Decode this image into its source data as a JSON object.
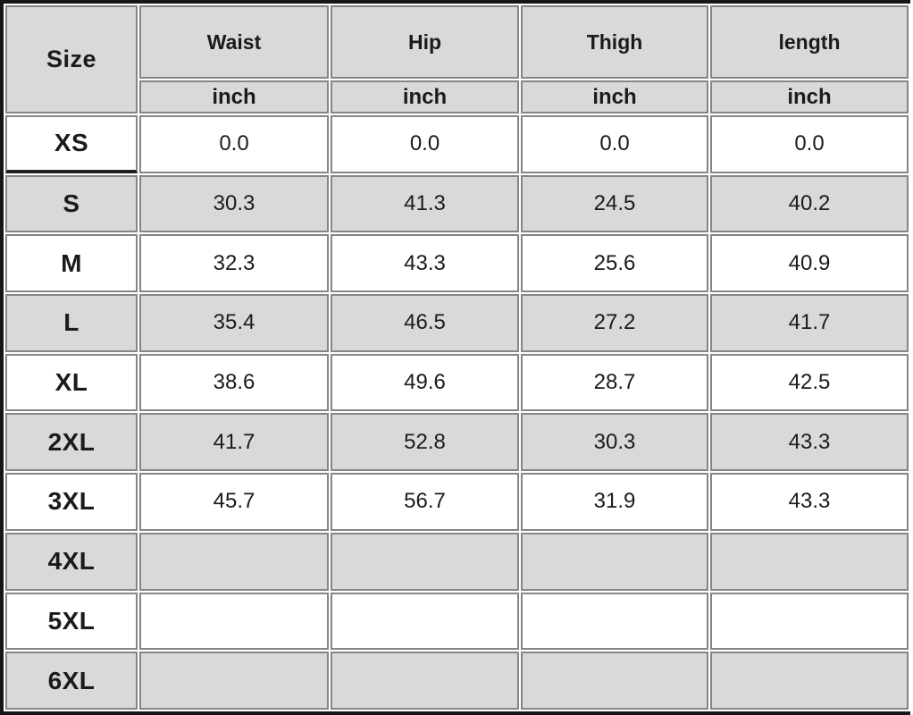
{
  "table": {
    "header": {
      "size_label": "Size",
      "columns": [
        "Waist",
        "Hip",
        "Thigh",
        "length"
      ],
      "unit": "inch"
    },
    "rows": [
      {
        "size": "XS",
        "values": [
          "0.0",
          "0.0",
          "0.0",
          "0.0"
        ]
      },
      {
        "size": "S",
        "values": [
          "30.3",
          "41.3",
          "24.5",
          "40.2"
        ]
      },
      {
        "size": "M",
        "values": [
          "32.3",
          "43.3",
          "25.6",
          "40.9"
        ]
      },
      {
        "size": "L",
        "values": [
          "35.4",
          "46.5",
          "27.2",
          "41.7"
        ]
      },
      {
        "size": "XL",
        "values": [
          "38.6",
          "49.6",
          "28.7",
          "42.5"
        ]
      },
      {
        "size": "2XL",
        "values": [
          "41.7",
          "52.8",
          "30.3",
          "43.3"
        ]
      },
      {
        "size": "3XL",
        "values": [
          "45.7",
          "56.7",
          "31.9",
          "43.3"
        ]
      },
      {
        "size": "4XL",
        "values": [
          "",
          "",
          "",
          ""
        ]
      },
      {
        "size": "5XL",
        "values": [
          "",
          "",
          "",
          ""
        ]
      },
      {
        "size": "6XL",
        "values": [
          "",
          "",
          "",
          ""
        ]
      }
    ]
  },
  "chart_data": {
    "type": "table",
    "columns": [
      "Size",
      "Waist (inch)",
      "Hip (inch)",
      "Thigh (inch)",
      "length (inch)"
    ],
    "rows": [
      [
        "XS",
        0.0,
        0.0,
        0.0,
        0.0
      ],
      [
        "S",
        30.3,
        41.3,
        24.5,
        40.2
      ],
      [
        "M",
        32.3,
        43.3,
        25.6,
        40.9
      ],
      [
        "L",
        35.4,
        46.5,
        27.2,
        41.7
      ],
      [
        "XL",
        38.6,
        49.6,
        28.7,
        42.5
      ],
      [
        "2XL",
        41.7,
        52.8,
        30.3,
        43.3
      ],
      [
        "3XL",
        45.7,
        56.7,
        31.9,
        43.3
      ],
      [
        "4XL",
        null,
        null,
        null,
        null
      ],
      [
        "5XL",
        null,
        null,
        null,
        null
      ],
      [
        "6XL",
        null,
        null,
        null,
        null
      ]
    ],
    "layout": {
      "grid": "on",
      "striped_rows": true,
      "unit_subheader_row": true
    }
  },
  "colors": {
    "header_fill": "#d9d9d9",
    "alt_row_fill": "#d9d9d9",
    "grid_line": "#868686",
    "outer_border": "#161616",
    "text": "#1b1b1b"
  }
}
